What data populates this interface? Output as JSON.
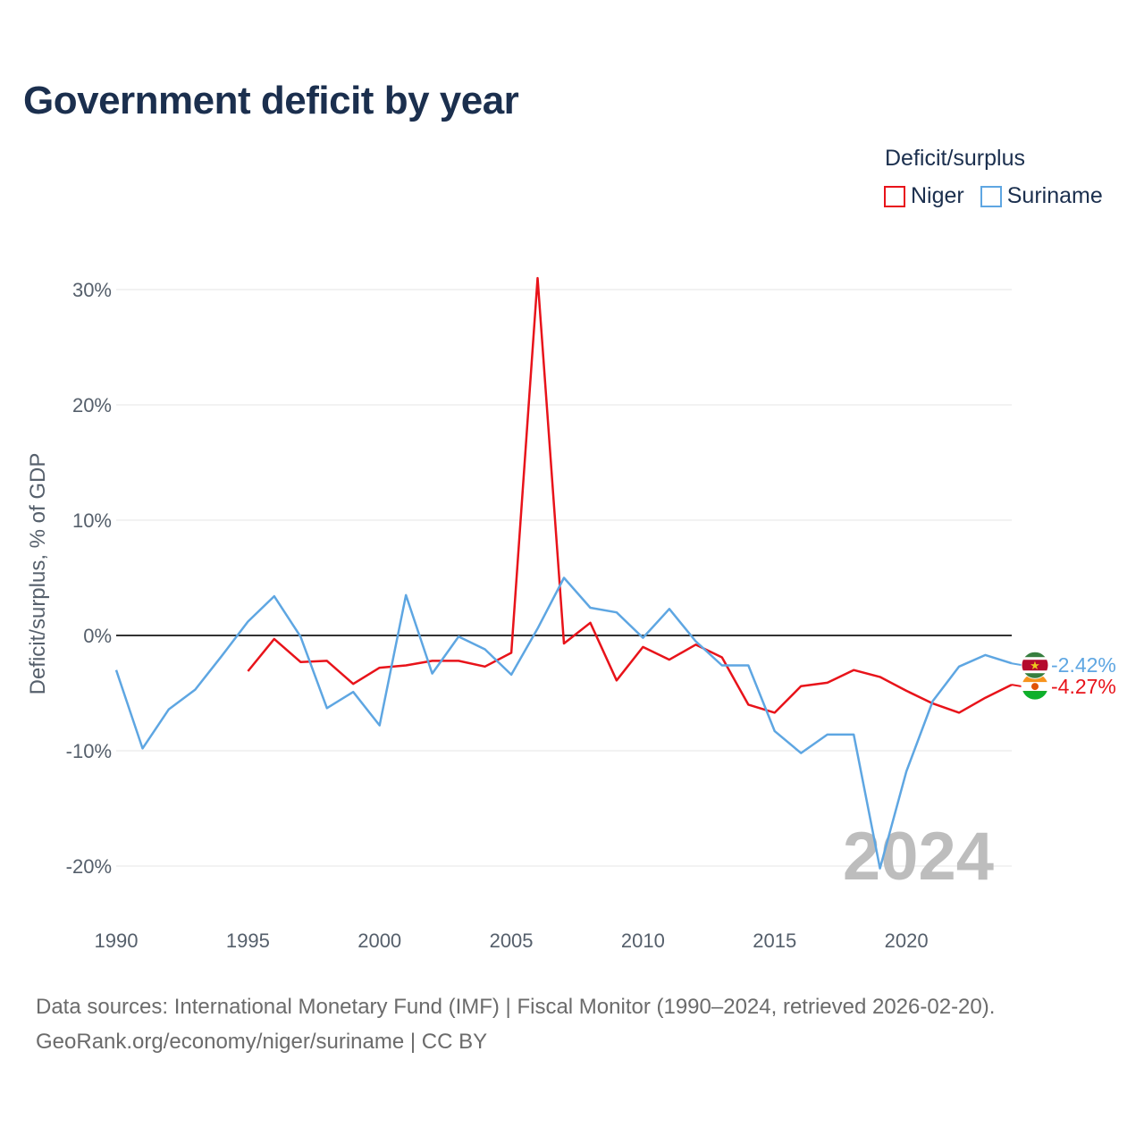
{
  "title": "Government deficit by year",
  "legend": {
    "title": "Deficit/surplus",
    "items": [
      {
        "label": "Niger",
        "color": "#e8131a"
      },
      {
        "label": "Suriname",
        "color": "#5ea6e2"
      }
    ]
  },
  "chart_data": {
    "type": "line",
    "ylabel": "Deficit/surplus, % of GDP",
    "xlabel": "",
    "xlim": [
      1990,
      2024
    ],
    "ylim": [
      -25,
      33
    ],
    "y_ticks": [
      30,
      20,
      10,
      0,
      -10,
      -20
    ],
    "y_tick_labels": [
      "30%",
      "20%",
      "10%",
      "0%",
      "-10%",
      "-20%"
    ],
    "x_ticks": [
      1990,
      1995,
      2000,
      2005,
      2010,
      2015,
      2020
    ],
    "x_tick_labels": [
      "1990",
      "1995",
      "2000",
      "2005",
      "2010",
      "2015",
      "2020"
    ],
    "year_label": "2024",
    "series": [
      {
        "name": "Niger",
        "color": "#e8131a",
        "end_label": "-4.27%",
        "flag": "niger-flag",
        "points": [
          [
            1995,
            -3.1
          ],
          [
            1996,
            -0.3
          ],
          [
            1997,
            -2.3
          ],
          [
            1998,
            -2.2
          ],
          [
            1999,
            -4.2
          ],
          [
            2000,
            -2.8
          ],
          [
            2001,
            -2.6
          ],
          [
            2002,
            -2.2
          ],
          [
            2003,
            -2.2
          ],
          [
            2004,
            -2.7
          ],
          [
            2005,
            -1.5
          ],
          [
            2006,
            31.0
          ],
          [
            2007,
            -0.7
          ],
          [
            2008,
            1.1
          ],
          [
            2009,
            -3.9
          ],
          [
            2010,
            -1.0
          ],
          [
            2011,
            -2.1
          ],
          [
            2012,
            -0.8
          ],
          [
            2013,
            -1.9
          ],
          [
            2014,
            -6.0
          ],
          [
            2015,
            -6.7
          ],
          [
            2016,
            -4.4
          ],
          [
            2017,
            -4.1
          ],
          [
            2018,
            -3.0
          ],
          [
            2019,
            -3.6
          ],
          [
            2020,
            -4.8
          ],
          [
            2021,
            -5.9
          ],
          [
            2022,
            -6.7
          ],
          [
            2023,
            -5.4
          ],
          [
            2024,
            -4.27
          ]
        ]
      },
      {
        "name": "Suriname",
        "color": "#5ea6e2",
        "end_label": "-2.42%",
        "flag": "suriname-flag",
        "points": [
          [
            1990,
            -3.0
          ],
          [
            1991,
            -9.8
          ],
          [
            1992,
            -6.4
          ],
          [
            1993,
            -4.7
          ],
          [
            1994,
            -1.8
          ],
          [
            1995,
            1.2
          ],
          [
            1996,
            3.4
          ],
          [
            1997,
            -0.1
          ],
          [
            1998,
            -6.3
          ],
          [
            1999,
            -4.9
          ],
          [
            2000,
            -7.8
          ],
          [
            2001,
            3.5
          ],
          [
            2002,
            -3.3
          ],
          [
            2003,
            -0.1
          ],
          [
            2004,
            -1.2
          ],
          [
            2005,
            -3.4
          ],
          [
            2006,
            0.6
          ],
          [
            2007,
            5.0
          ],
          [
            2008,
            2.4
          ],
          [
            2009,
            2.0
          ],
          [
            2010,
            -0.2
          ],
          [
            2011,
            2.3
          ],
          [
            2012,
            -0.5
          ],
          [
            2013,
            -2.6
          ],
          [
            2014,
            -2.6
          ],
          [
            2015,
            -8.3
          ],
          [
            2016,
            -10.2
          ],
          [
            2017,
            -8.6
          ],
          [
            2018,
            -8.6
          ],
          [
            2019,
            -20.2
          ],
          [
            2020,
            -11.8
          ],
          [
            2021,
            -5.7
          ],
          [
            2022,
            -2.7
          ],
          [
            2023,
            -1.7
          ],
          [
            2024,
            -2.42
          ]
        ]
      }
    ]
  },
  "footer": {
    "line1": "Data sources: International Monetary Fund (IMF) | Fiscal Monitor (1990–2024, retrieved 2026-02-20).",
    "line2": "GeoRank.org/economy/niger/suriname | CC BY"
  }
}
